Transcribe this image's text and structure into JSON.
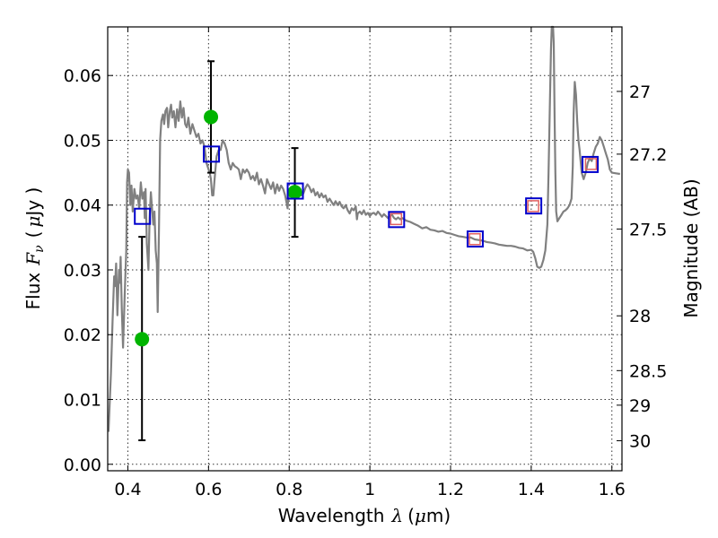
{
  "chart_data": {
    "type": "scatter",
    "xlabel": "Wavelength",
    "xlabel_symbol": "λ",
    "xlabel_unit_left": "(",
    "xlabel_unit_mu": "μ",
    "xlabel_unit_right": "m)",
    "ylabel": "Flux",
    "ylabel_symbol": "F",
    "ylabel_subscript": "ν",
    "ylabel_unit_left": "(",
    "ylabel_unit_mu": "μ",
    "ylabel_unit_right": "Jy )",
    "y2label": "Magnitude (AB)",
    "xlim": [
      0.35,
      1.625
    ],
    "ylim": [
      -0.001,
      0.0675
    ],
    "grid": true,
    "xticks": [
      {
        "value": 0.4,
        "label": "0.4"
      },
      {
        "value": 0.6,
        "label": "0.6"
      },
      {
        "value": 0.8,
        "label": "0.8"
      },
      {
        "value": 1.0,
        "label": "1"
      },
      {
        "value": 1.2,
        "label": "1.2"
      },
      {
        "value": 1.4,
        "label": "1.4"
      },
      {
        "value": 1.6,
        "label": "1.6"
      }
    ],
    "yticks": [
      {
        "value": 0.0,
        "label": "0.00"
      },
      {
        "value": 0.01,
        "label": "0.01"
      },
      {
        "value": 0.02,
        "label": "0.02"
      },
      {
        "value": 0.03,
        "label": "0.03"
      },
      {
        "value": 0.04,
        "label": "0.04"
      },
      {
        "value": 0.05,
        "label": "0.05"
      },
      {
        "value": 0.06,
        "label": "0.06"
      }
    ],
    "y2ticks": [
      {
        "mag": 27.0,
        "label": "27"
      },
      {
        "mag": 27.2,
        "label": "27.2"
      },
      {
        "mag": 27.5,
        "label": "27.5"
      },
      {
        "mag": 28.0,
        "label": "28"
      },
      {
        "mag": 28.5,
        "label": "28.5"
      },
      {
        "mag": 29.0,
        "label": "29"
      },
      {
        "mag": 30.0,
        "label": "30"
      }
    ],
    "series": [
      {
        "name": "model-spectrum",
        "kind": "line",
        "color": "#808080",
        "points": [
          [
            0.352,
            0.005
          ],
          [
            0.358,
            0.014
          ],
          [
            0.362,
            0.022
          ],
          [
            0.366,
            0.029
          ],
          [
            0.368,
            0.0275
          ],
          [
            0.371,
            0.031
          ],
          [
            0.374,
            0.023
          ],
          [
            0.378,
            0.03
          ],
          [
            0.38,
            0.028
          ],
          [
            0.382,
            0.032
          ],
          [
            0.385,
            0.024
          ],
          [
            0.388,
            0.018
          ],
          [
            0.392,
            0.026
          ],
          [
            0.396,
            0.033
          ],
          [
            0.398,
            0.0435
          ],
          [
            0.4,
            0.0455
          ],
          [
            0.403,
            0.045
          ],
          [
            0.406,
            0.04
          ],
          [
            0.409,
            0.043
          ],
          [
            0.412,
            0.039
          ],
          [
            0.416,
            0.0425
          ],
          [
            0.42,
            0.041
          ],
          [
            0.424,
            0.0415
          ],
          [
            0.428,
            0.0395
          ],
          [
            0.432,
            0.0435
          ],
          [
            0.436,
            0.041
          ],
          [
            0.44,
            0.042
          ],
          [
            0.442,
            0.038
          ],
          [
            0.444,
            0.0425
          ],
          [
            0.447,
            0.034
          ],
          [
            0.451,
            0.03
          ],
          [
            0.454,
            0.038
          ],
          [
            0.457,
            0.042
          ],
          [
            0.46,
            0.0395
          ],
          [
            0.463,
            0.037
          ],
          [
            0.466,
            0.039
          ],
          [
            0.469,
            0.033
          ],
          [
            0.472,
            0.031
          ],
          [
            0.474,
            0.0235
          ],
          [
            0.477,
            0.036
          ],
          [
            0.48,
            0.05
          ],
          [
            0.483,
            0.053
          ],
          [
            0.487,
            0.054
          ],
          [
            0.49,
            0.0525
          ],
          [
            0.493,
            0.0545
          ],
          [
            0.497,
            0.055
          ],
          [
            0.5,
            0.052
          ],
          [
            0.504,
            0.0545
          ],
          [
            0.507,
            0.0555
          ],
          [
            0.51,
            0.0535
          ],
          [
            0.514,
            0.0545
          ],
          [
            0.518,
            0.052
          ],
          [
            0.522,
            0.0548
          ],
          [
            0.526,
            0.053
          ],
          [
            0.53,
            0.056
          ],
          [
            0.534,
            0.0535
          ],
          [
            0.538,
            0.055
          ],
          [
            0.542,
            0.0525
          ],
          [
            0.546,
            0.052
          ],
          [
            0.55,
            0.0535
          ],
          [
            0.555,
            0.051
          ],
          [
            0.56,
            0.0525
          ],
          [
            0.565,
            0.0515
          ],
          [
            0.57,
            0.0505
          ],
          [
            0.575,
            0.051
          ],
          [
            0.58,
            0.0495
          ],
          [
            0.585,
            0.05
          ],
          [
            0.59,
            0.049
          ],
          [
            0.595,
            0.0465
          ],
          [
            0.6,
            0.0455
          ],
          [
            0.603,
            0.045
          ],
          [
            0.606,
            0.044
          ],
          [
            0.609,
            0.0415
          ],
          [
            0.612,
            0.0415
          ],
          [
            0.615,
            0.044
          ],
          [
            0.62,
            0.0475
          ],
          [
            0.625,
            0.0485
          ],
          [
            0.63,
            0.0485
          ],
          [
            0.635,
            0.05
          ],
          [
            0.64,
            0.0495
          ],
          [
            0.645,
            0.0485
          ],
          [
            0.65,
            0.0465
          ],
          [
            0.655,
            0.0455
          ],
          [
            0.66,
            0.0465
          ],
          [
            0.665,
            0.046
          ],
          [
            0.67,
            0.0458
          ],
          [
            0.675,
            0.0455
          ],
          [
            0.68,
            0.044
          ],
          [
            0.685,
            0.0455
          ],
          [
            0.69,
            0.045
          ],
          [
            0.695,
            0.0455
          ],
          [
            0.7,
            0.045
          ],
          [
            0.705,
            0.044
          ],
          [
            0.71,
            0.0445
          ],
          [
            0.715,
            0.0438
          ],
          [
            0.72,
            0.045
          ],
          [
            0.725,
            0.0432
          ],
          [
            0.73,
            0.044
          ],
          [
            0.735,
            0.043
          ],
          [
            0.74,
            0.0418
          ],
          [
            0.745,
            0.044
          ],
          [
            0.75,
            0.0432
          ],
          [
            0.755,
            0.0425
          ],
          [
            0.76,
            0.0435
          ],
          [
            0.765,
            0.0418
          ],
          [
            0.77,
            0.0432
          ],
          [
            0.775,
            0.0422
          ],
          [
            0.78,
            0.043
          ],
          [
            0.785,
            0.0425
          ],
          [
            0.79,
            0.0415
          ],
          [
            0.793,
            0.0405
          ],
          [
            0.796,
            0.0395
          ],
          [
            0.799,
            0.042
          ],
          [
            0.802,
            0.0415
          ],
          [
            0.805,
            0.0428
          ],
          [
            0.81,
            0.042
          ],
          [
            0.815,
            0.0425
          ],
          [
            0.82,
            0.0418
          ],
          [
            0.825,
            0.0423
          ],
          [
            0.83,
            0.0415
          ],
          [
            0.835,
            0.0418
          ],
          [
            0.84,
            0.0426
          ],
          [
            0.845,
            0.0432
          ],
          [
            0.85,
            0.0428
          ],
          [
            0.855,
            0.042
          ],
          [
            0.86,
            0.0425
          ],
          [
            0.865,
            0.0415
          ],
          [
            0.87,
            0.042
          ],
          [
            0.875,
            0.0412
          ],
          [
            0.88,
            0.0418
          ],
          [
            0.885,
            0.0412
          ],
          [
            0.89,
            0.0415
          ],
          [
            0.895,
            0.0405
          ],
          [
            0.9,
            0.041
          ],
          [
            0.905,
            0.0405
          ],
          [
            0.91,
            0.04
          ],
          [
            0.915,
            0.0406
          ],
          [
            0.92,
            0.04
          ],
          [
            0.925,
            0.0405
          ],
          [
            0.93,
            0.0398
          ],
          [
            0.935,
            0.0395
          ],
          [
            0.94,
            0.04
          ],
          [
            0.945,
            0.0392
          ],
          [
            0.95,
            0.0387
          ],
          [
            0.955,
            0.0395
          ],
          [
            0.96,
            0.0392
          ],
          [
            0.965,
            0.0398
          ],
          [
            0.968,
            0.0378
          ],
          [
            0.97,
            0.0387
          ],
          [
            0.975,
            0.039
          ],
          [
            0.98,
            0.0386
          ],
          [
            0.985,
            0.0392
          ],
          [
            0.99,
            0.0385
          ],
          [
            0.995,
            0.0388
          ],
          [
            1.0,
            0.0383
          ],
          [
            1.005,
            0.0387
          ],
          [
            1.01,
            0.0388
          ],
          [
            1.015,
            0.0385
          ],
          [
            1.02,
            0.039
          ],
          [
            1.025,
            0.0386
          ],
          [
            1.03,
            0.0382
          ],
          [
            1.035,
            0.0386
          ],
          [
            1.04,
            0.0383
          ],
          [
            1.045,
            0.038
          ],
          [
            1.05,
            0.0384
          ],
          [
            1.055,
            0.0385
          ],
          [
            1.06,
            0.038
          ],
          [
            1.065,
            0.0378
          ],
          [
            1.07,
            0.0381
          ],
          [
            1.075,
            0.0378
          ],
          [
            1.08,
            0.038
          ],
          [
            1.09,
            0.0376
          ],
          [
            1.1,
            0.0374
          ],
          [
            1.11,
            0.0371
          ],
          [
            1.12,
            0.0368
          ],
          [
            1.13,
            0.0364
          ],
          [
            1.14,
            0.0366
          ],
          [
            1.15,
            0.0362
          ],
          [
            1.16,
            0.0361
          ],
          [
            1.17,
            0.0359
          ],
          [
            1.18,
            0.036
          ],
          [
            1.19,
            0.0357
          ],
          [
            1.2,
            0.0356
          ],
          [
            1.21,
            0.0354
          ],
          [
            1.22,
            0.0352
          ],
          [
            1.23,
            0.0351
          ],
          [
            1.24,
            0.035
          ],
          [
            1.25,
            0.035
          ],
          [
            1.26,
            0.0347
          ],
          [
            1.27,
            0.0346
          ],
          [
            1.28,
            0.0345
          ],
          [
            1.29,
            0.0343
          ],
          [
            1.3,
            0.0342
          ],
          [
            1.31,
            0.0341
          ],
          [
            1.32,
            0.0339
          ],
          [
            1.33,
            0.0338
          ],
          [
            1.34,
            0.0337
          ],
          [
            1.35,
            0.0337
          ],
          [
            1.36,
            0.0336
          ],
          [
            1.37,
            0.0334
          ],
          [
            1.38,
            0.0333
          ],
          [
            1.39,
            0.033
          ],
          [
            1.4,
            0.0331
          ],
          [
            1.405,
            0.0328
          ],
          [
            1.41,
            0.0318
          ],
          [
            1.415,
            0.0305
          ],
          [
            1.42,
            0.0303
          ],
          [
            1.425,
            0.0305
          ],
          [
            1.43,
            0.0315
          ],
          [
            1.435,
            0.033
          ],
          [
            1.44,
            0.037
          ],
          [
            1.443,
            0.045
          ],
          [
            1.446,
            0.055
          ],
          [
            1.449,
            0.064
          ],
          [
            1.451,
            0.0675
          ],
          [
            1.454,
            0.0675
          ],
          [
            1.456,
            0.065
          ],
          [
            1.458,
            0.054
          ],
          [
            1.46,
            0.045
          ],
          [
            1.462,
            0.039
          ],
          [
            1.465,
            0.0375
          ],
          [
            1.47,
            0.038
          ],
          [
            1.475,
            0.0385
          ],
          [
            1.48,
            0.039
          ],
          [
            1.485,
            0.0392
          ],
          [
            1.49,
            0.0395
          ],
          [
            1.495,
            0.04
          ],
          [
            1.5,
            0.041
          ],
          [
            1.503,
            0.046
          ],
          [
            1.505,
            0.054
          ],
          [
            1.508,
            0.059
          ],
          [
            1.511,
            0.057
          ],
          [
            1.514,
            0.053
          ],
          [
            1.517,
            0.05
          ],
          [
            1.52,
            0.0485
          ],
          [
            1.525,
            0.045
          ],
          [
            1.53,
            0.044
          ],
          [
            1.535,
            0.045
          ],
          [
            1.54,
            0.0465
          ],
          [
            1.545,
            0.0472
          ],
          [
            1.55,
            0.0468
          ],
          [
            1.555,
            0.048
          ],
          [
            1.56,
            0.049
          ],
          [
            1.565,
            0.0495
          ],
          [
            1.57,
            0.0505
          ],
          [
            1.575,
            0.05
          ],
          [
            1.58,
            0.049
          ],
          [
            1.585,
            0.048
          ],
          [
            1.59,
            0.047
          ],
          [
            1.595,
            0.0455
          ],
          [
            1.6,
            0.045
          ],
          [
            1.61,
            0.0449
          ],
          [
            1.62,
            0.0448
          ]
        ]
      },
      {
        "name": "observed-photometry",
        "kind": "markers",
        "marker": "circle",
        "color": "#00b400",
        "points": [
          {
            "x": 0.435,
            "y": 0.0193,
            "ylo": 0.0037,
            "yhi": 0.0351
          },
          {
            "x": 0.606,
            "y": 0.0536,
            "ylo": 0.045,
            "yhi": 0.0622
          },
          {
            "x": 0.814,
            "y": 0.042,
            "ylo": 0.0351,
            "yhi": 0.0488
          }
        ]
      },
      {
        "name": "model-photometry",
        "kind": "markers",
        "marker": "square",
        "color": "#0000cc",
        "points": [
          {
            "x": 0.435,
            "y": 0.0382
          },
          {
            "x": 0.606,
            "y": 0.0478
          },
          {
            "x": 0.814,
            "y": 0.0421
          },
          {
            "x": 1.065,
            "y": 0.0377
          },
          {
            "x": 1.26,
            "y": 0.0347
          },
          {
            "x": 1.405,
            "y": 0.0398
          },
          {
            "x": 1.545,
            "y": 0.0462
          }
        ]
      },
      {
        "name": "inner-model-photometry",
        "kind": "markers",
        "marker": "square",
        "color": "#e06060",
        "points": [
          {
            "x": 1.065,
            "y": 0.0377
          },
          {
            "x": 1.26,
            "y": 0.0346
          },
          {
            "x": 1.405,
            "y": 0.0397
          },
          {
            "x": 1.548,
            "y": 0.0462
          }
        ]
      }
    ]
  }
}
